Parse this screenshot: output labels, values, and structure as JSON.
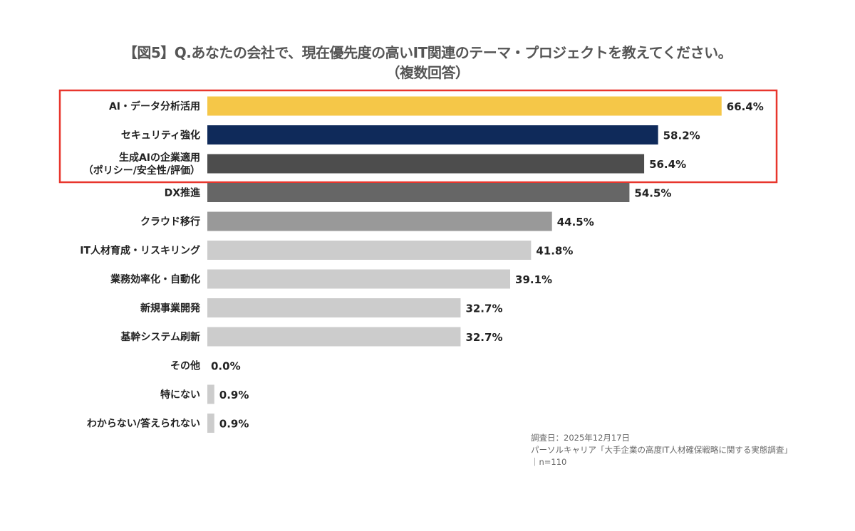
{
  "title_line1": "【図5】Q.あなたの会社で、現在優先度の高いIT関連のテーマ・プロジェクトを教えてください。",
  "title_line2": "（複数回答）",
  "chart_data": {
    "type": "bar",
    "orientation": "horizontal",
    "title": "【図5】Q.あなたの会社で、現在優先度の高いIT関連のテーマ・プロジェクトを教えてください。（複数回答）",
    "xlabel": "",
    "ylabel": "",
    "unit": "%",
    "xlim": [
      0,
      70
    ],
    "grid": false,
    "categories": [
      [
        "AI・データ分析活用"
      ],
      [
        "セキュリティ強化"
      ],
      [
        "生成AIの企業適用",
        "（ポリシー/安全性/評価）"
      ],
      [
        "DX推進"
      ],
      [
        "クラウド移行"
      ],
      [
        "IT人材育成・リスキリング"
      ],
      [
        "業務効率化・自動化"
      ],
      [
        "新規事業開発"
      ],
      [
        "基幹システム刷新"
      ],
      [
        "その他"
      ],
      [
        "特にない"
      ],
      [
        "わからない/答えられない"
      ]
    ],
    "values": [
      66.4,
      58.2,
      56.4,
      54.5,
      44.5,
      41.8,
      39.1,
      32.7,
      32.7,
      0.0,
      0.9,
      0.9
    ],
    "value_labels": [
      "66.4%",
      "58.2%",
      "56.4%",
      "54.5%",
      "44.5%",
      "41.8%",
      "39.1%",
      "32.7%",
      "32.7%",
      "0.0%",
      "0.9%",
      "0.9%"
    ],
    "colors": [
      "#f5c748",
      "#0f2a5a",
      "#4d4d4d",
      "#666666",
      "#999999",
      "#cccccc",
      "#cccccc",
      "#cccccc",
      "#cccccc",
      "#cccccc",
      "#cccccc",
      "#cccccc"
    ],
    "highlight": {
      "from_index": 0,
      "to_index": 2,
      "color": "#e8362d"
    }
  },
  "source": {
    "line1": "調査日：2025年12月17日",
    "line2": "パーソルキャリア「大手企業の高度IT人材確保戦略に関する実態調査」",
    "line3": "｜n=110"
  }
}
